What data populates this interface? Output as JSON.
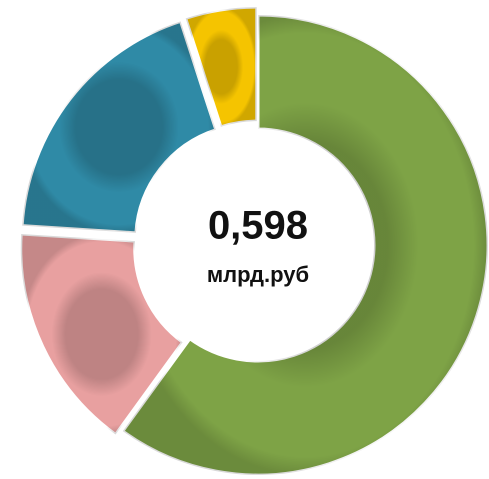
{
  "chart_data": {
    "type": "donut",
    "center_value": "0,598",
    "center_unit": "млрд.руб",
    "values": [
      60,
      16,
      19,
      5
    ],
    "colors": [
      "#7ea346",
      "#e8a0a0",
      "#2f8aa6",
      "#f5c400"
    ]
  }
}
